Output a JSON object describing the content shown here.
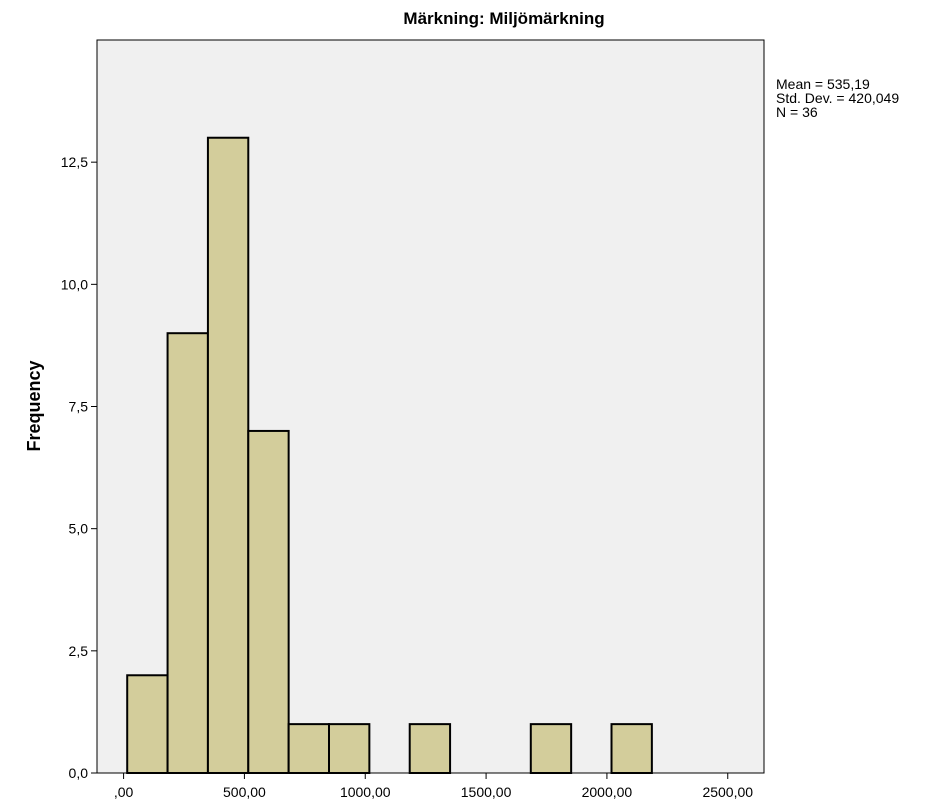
{
  "chart_data": {
    "type": "bar",
    "title": "Märkning: Miljömärkning",
    "xlabel": "",
    "ylabel": "Frequency",
    "xlim": [
      -110,
      2650
    ],
    "ylim": [
      0,
      15
    ],
    "x_ticks": [
      0,
      500,
      1000,
      1500,
      2000,
      2500
    ],
    "x_tick_labels": [
      ",00",
      "500,00",
      "1000,00",
      "1500,00",
      "2000,00",
      "2500,00"
    ],
    "y_ticks": [
      0,
      2.5,
      5,
      7.5,
      10,
      12.5
    ],
    "y_tick_labels": [
      "0,0",
      "2,5",
      "5,0",
      "7,5",
      "10,0",
      "12,5"
    ],
    "bins": [
      {
        "start": 15,
        "end": 182,
        "count": 2
      },
      {
        "start": 182,
        "end": 349,
        "count": 9
      },
      {
        "start": 349,
        "end": 516,
        "count": 13
      },
      {
        "start": 516,
        "end": 683,
        "count": 7
      },
      {
        "start": 683,
        "end": 850,
        "count": 1
      },
      {
        "start": 850,
        "end": 1017,
        "count": 1
      },
      {
        "start": 1184,
        "end": 1351,
        "count": 1
      },
      {
        "start": 1685,
        "end": 1852,
        "count": 1
      },
      {
        "start": 2019,
        "end": 2186,
        "count": 1
      }
    ],
    "bar_color": "#d3cd9b",
    "plot_background": "#f0f0f0",
    "grid": false,
    "legend": "none"
  },
  "stats": {
    "mean": "Mean = 535,19",
    "std_dev": "Std. Dev. = 420,049",
    "n": "N = 36"
  }
}
